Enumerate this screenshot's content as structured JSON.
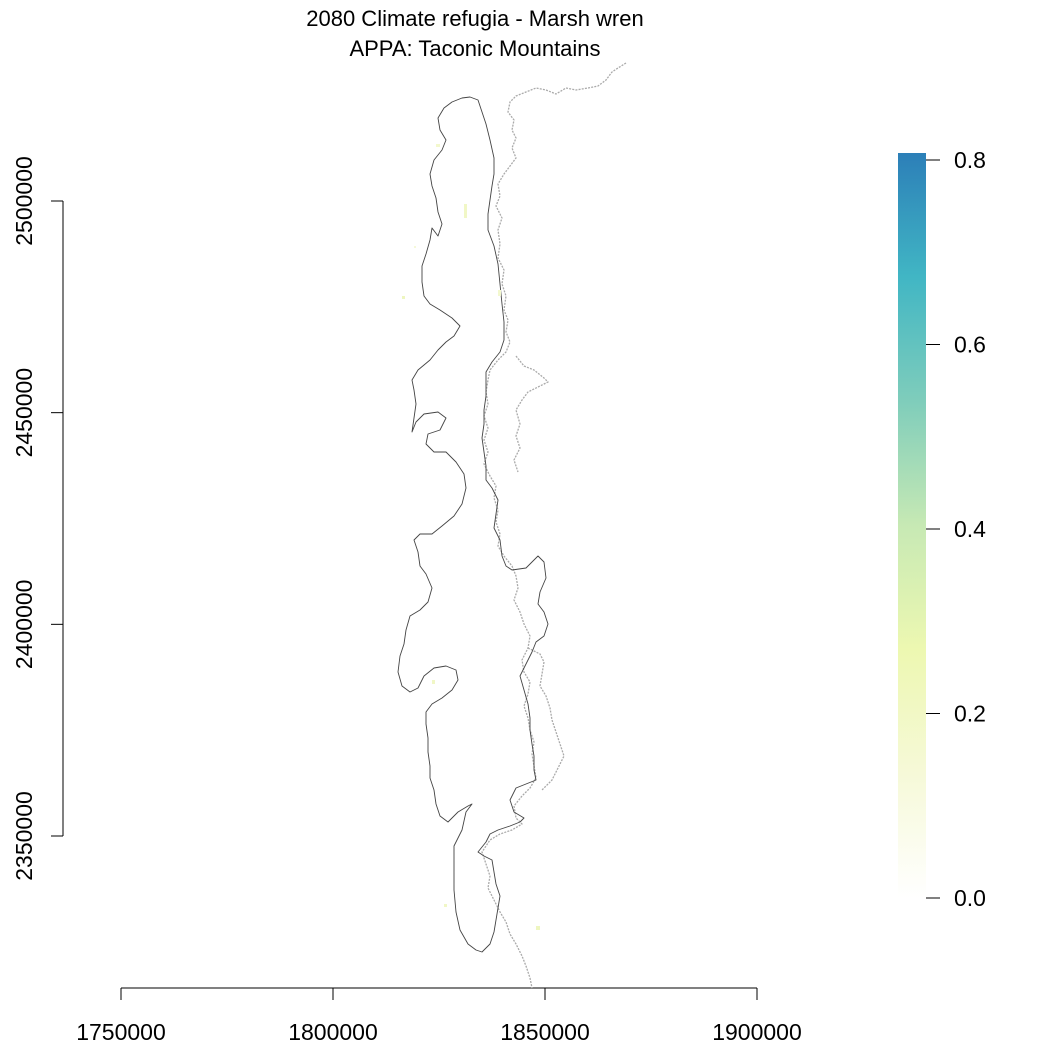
{
  "title": {
    "line1": "2080 Climate refugia - Marsh wren",
    "line2": "APPA: Taconic Mountains"
  },
  "x_axis": {
    "ticks": [
      {
        "value": 1750000,
        "label": "1750000"
      },
      {
        "value": 1800000,
        "label": "1800000"
      },
      {
        "value": 1850000,
        "label": "1850000"
      },
      {
        "value": 1900000,
        "label": "1900000"
      }
    ]
  },
  "y_axis": {
    "ticks": [
      {
        "value": 2350000,
        "label": "2350000"
      },
      {
        "value": 2400000,
        "label": "2400000"
      },
      {
        "value": 2450000,
        "label": "2450000"
      },
      {
        "value": 2500000,
        "label": "2500000"
      }
    ]
  },
  "legend": {
    "min": 0.0,
    "max": 0.8,
    "ticks": [
      {
        "value": 0.0,
        "label": "0.0"
      },
      {
        "value": 0.2,
        "label": "0.2"
      },
      {
        "value": 0.4,
        "label": "0.4"
      },
      {
        "value": 0.6,
        "label": "0.6"
      },
      {
        "value": 0.8,
        "label": "0.8"
      }
    ],
    "colors": [
      "#ffffff",
      "#f6f9d8",
      "#edf8b1",
      "#c7e9b4",
      "#7fcdbb",
      "#41b6c4",
      "#2c7fb8"
    ]
  }
}
